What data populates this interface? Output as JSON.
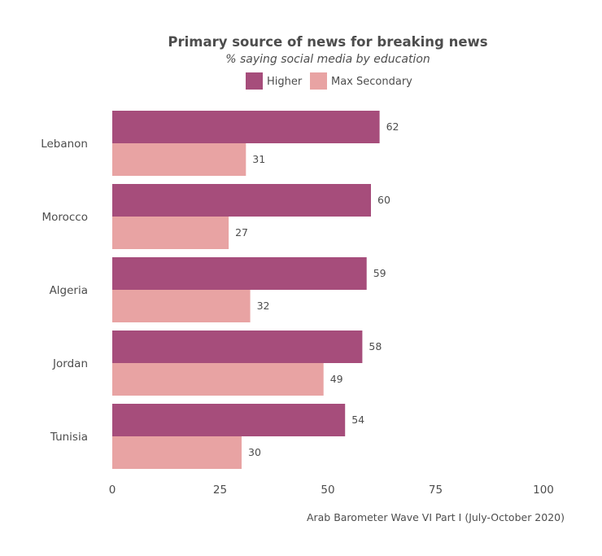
{
  "chart_data": {
    "type": "bar",
    "orientation": "horizontal",
    "title": "Primary source of news for breaking news",
    "subtitle": "% saying social media by education",
    "caption": "Arab Barometer Wave VI Part I (July-October 2020)",
    "categories": [
      "Lebanon",
      "Morocco",
      "Algeria",
      "Jordan",
      "Tunisia"
    ],
    "series": [
      {
        "name": "Higher",
        "color": "#a64d7b",
        "values": [
          62,
          60,
          59,
          58,
          54
        ]
      },
      {
        "name": "Max Secondary",
        "color": "#e8a3a3",
        "values": [
          31,
          27,
          32,
          49,
          30
        ]
      }
    ],
    "xlim": [
      0,
      100
    ],
    "xticks": [
      "0",
      "25",
      "50",
      "75",
      "100"
    ],
    "xlabel": "",
    "ylabel": "",
    "legend_position": "top",
    "grid": false
  }
}
